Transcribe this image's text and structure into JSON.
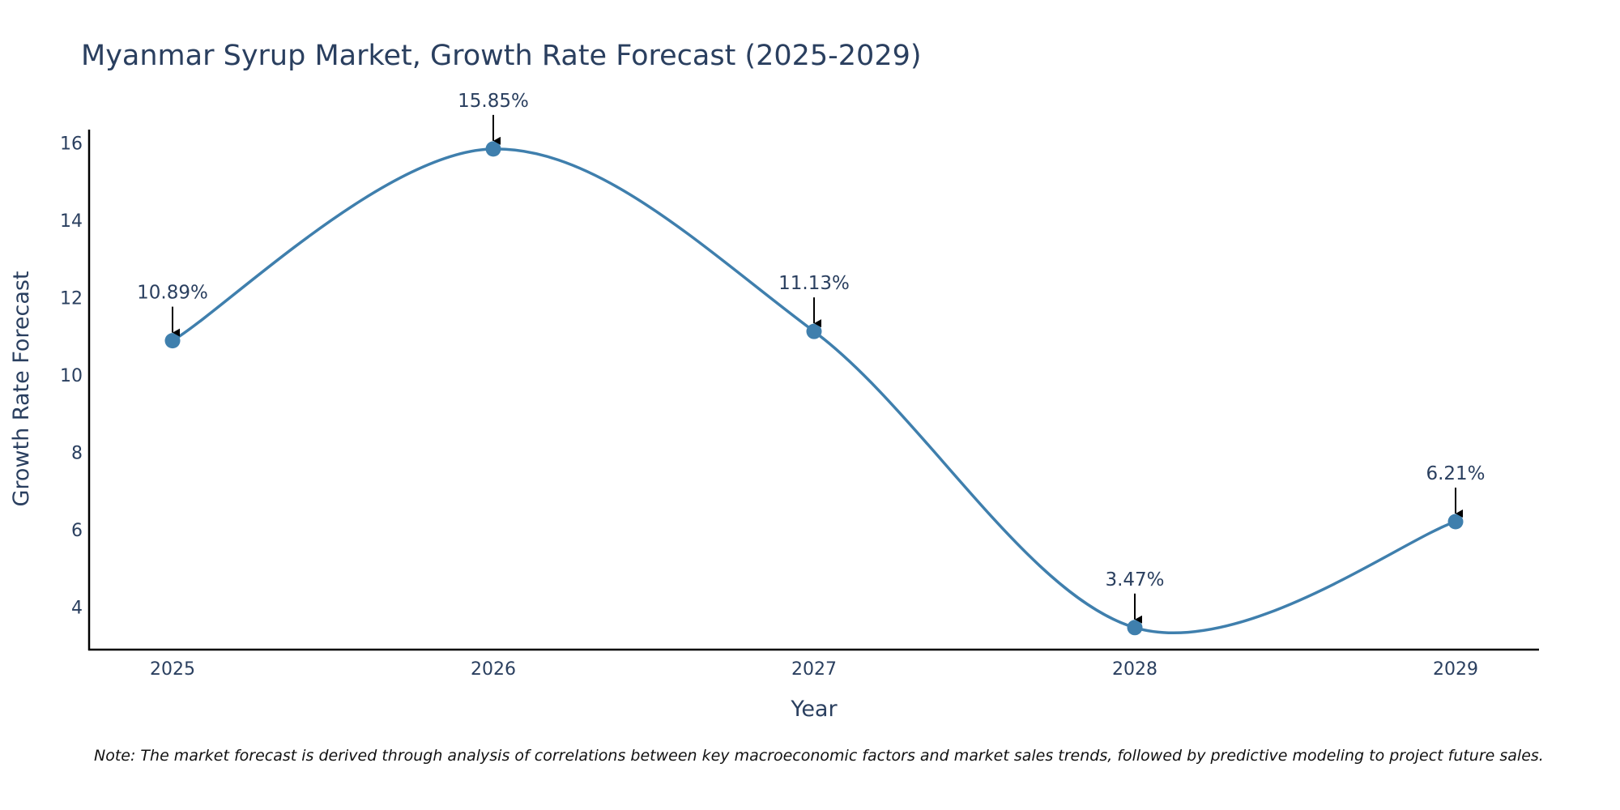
{
  "chart_data": {
    "type": "line",
    "title": "Myanmar Syrup Market, Growth Rate Forecast (2025-2029)",
    "xlabel": "Year",
    "ylabel": "Growth Rate Forecast",
    "categories": [
      "2025",
      "2026",
      "2027",
      "2028",
      "2029"
    ],
    "series": [
      {
        "name": "Growth Rate Forecast",
        "values": [
          10.89,
          15.85,
          11.13,
          3.47,
          6.21
        ],
        "labels": [
          "10.89%",
          "15.85%",
          "11.13%",
          "3.47%",
          "6.21%"
        ]
      }
    ],
    "ylim": [
      2.9,
      16.35
    ],
    "yticks": [
      4,
      6,
      8,
      10,
      12,
      14,
      16
    ],
    "ytick_labels": [
      "4",
      "6",
      "8",
      "10",
      "12",
      "14",
      "16"
    ],
    "grid": false,
    "line_shape": "spline",
    "line_color": "#3f7fad",
    "marker_color": "#3f7fad",
    "annotation_arrow_color": "#000000",
    "axis_line_color": "#000000",
    "text_color": "#2a3f5f",
    "note": "Note: The market forecast is derived through analysis of correlations between key macroeconomic factors and market sales trends, followed by predictive modeling to project future sales."
  }
}
